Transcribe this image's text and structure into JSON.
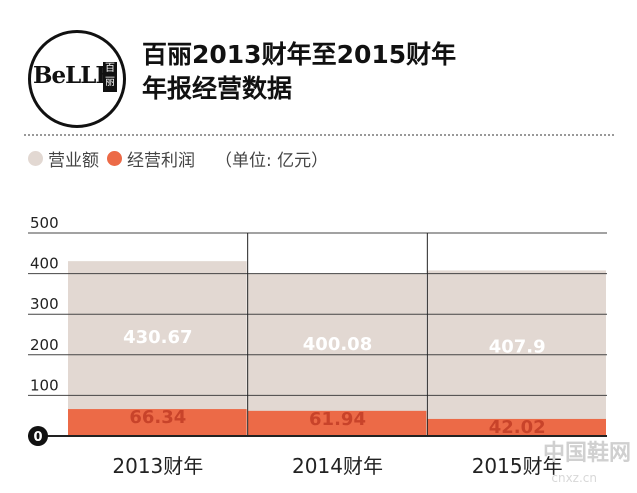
{
  "logo": {
    "text": "BeLLE",
    "cn": "百丽"
  },
  "title": [
    "百丽2013财年至2015财年",
    "年报经营数据"
  ],
  "legend": {
    "items": [
      {
        "label": "营业额",
        "color": "#e2d8d2"
      },
      {
        "label": "经营利润",
        "color": "#ec6a47"
      }
    ],
    "unit": "（单位: 亿元）"
  },
  "watermark": {
    "main": "中国鞋网",
    "sub": "cnxz.cn"
  },
  "chart_data": {
    "type": "bar",
    "categories": [
      "2013财年",
      "2014财年",
      "2015财年"
    ],
    "series": [
      {
        "name": "营业额",
        "values": [
          430.67,
          400.08,
          407.9
        ],
        "color": "#e2d8d2",
        "labels": [
          "430.67",
          "400.08",
          "407.9"
        ]
      },
      {
        "name": "经营利润",
        "values": [
          66.34,
          61.94,
          42.02
        ],
        "color": "#ec6a47",
        "labels": [
          "66.34",
          "61.94",
          "42.02"
        ]
      }
    ],
    "ylim": [
      0,
      500
    ],
    "yticks": [
      500,
      400,
      300,
      200,
      100,
      0
    ],
    "grid": true,
    "legend_position": "top-left"
  }
}
